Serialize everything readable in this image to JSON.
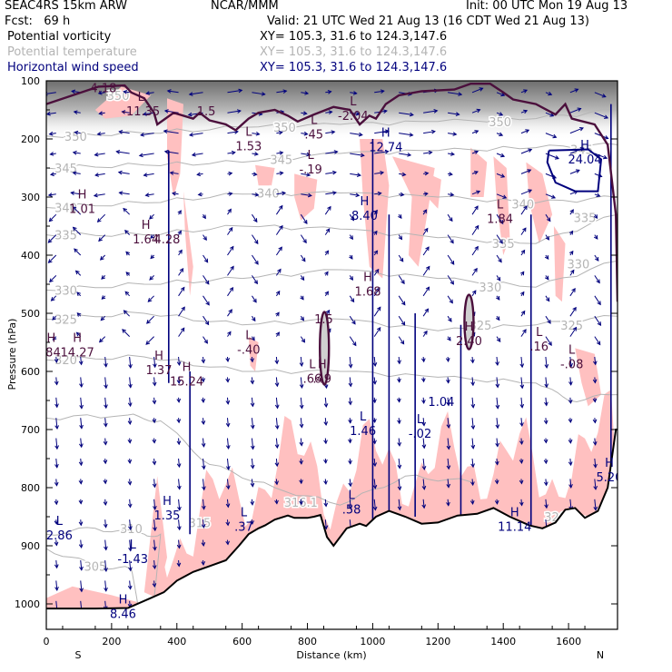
{
  "header": {
    "model": "SEAC4RS 15km ARW",
    "center": "NCAR/MMM",
    "init": "Init: 00 UTC Mon 19 Aug 13",
    "fcst": "Fcst:   69 h",
    "valid": "Valid: 21 UTC Wed 21 Aug 13 (16 CDT Wed 21 Aug 13)",
    "fields": [
      {
        "name": "Potential vorticity",
        "xy": "XY= 105.3, 31.6 to 124.3,147.6",
        "color": "#000000"
      },
      {
        "name": "Potential temperature",
        "xy": "XY= 105.3, 31.6 to 124.3,147.6",
        "color": "#b4b4b4"
      },
      {
        "name": "Horizontal wind speed",
        "xy": "XY= 105.3, 31.6 to 124.3,147.6",
        "color": "#00007d"
      }
    ]
  },
  "colors": {
    "pv_contour": "#4b0f3c",
    "theta_contour": "#b4b4b4",
    "wind": "#00007d",
    "pv_shade_low": "#ffc0c0",
    "terrain": "#000000"
  },
  "chart_data": {
    "type": "cross-section",
    "title": "Potential vorticity, Potential temperature, Horizontal wind speed",
    "xlabel": "Distance (km)",
    "ylabel": "Pressure (hPa)",
    "xlim": [
      0,
      1750
    ],
    "ylim": [
      1050,
      100
    ],
    "x_ticks": [
      0,
      200,
      400,
      600,
      800,
      1000,
      1200,
      1400,
      1600
    ],
    "x_tick_labels": [
      "0",
      "200",
      "400",
      "600",
      "800",
      "1000",
      "1200",
      "1400",
      "1600"
    ],
    "y_ticks": [
      100,
      200,
      300,
      400,
      500,
      600,
      700,
      800,
      900,
      1000
    ],
    "y_tick_labels": [
      "100",
      "200",
      "300",
      "400",
      "500",
      "600",
      "700",
      "800",
      "900",
      "1000"
    ],
    "endpoints": {
      "left": "S",
      "right": "N"
    },
    "theta_contours": [
      {
        "value": 305,
        "label": "305",
        "label_at": [
          150,
          935
        ]
      },
      {
        "value": 310,
        "label": "310",
        "label_at": [
          260,
          870
        ]
      },
      {
        "value": 315,
        "label": "315",
        "label_at": [
          470,
          860
        ]
      },
      {
        "value": 316.1,
        "label": "316.1",
        "label_at": [
          780,
          825
        ]
      },
      {
        "value": 320,
        "label": "320",
        "label_at": [
          60,
          580
        ]
      },
      {
        "value": 320,
        "label": "320",
        "label_at": [
          1560,
          850
        ]
      },
      {
        "value": 325,
        "label": "325",
        "label_at": [
          60,
          510
        ]
      },
      {
        "value": 325,
        "label": "325",
        "label_at": [
          1330,
          520
        ]
      },
      {
        "value": 325,
        "label": "325",
        "label_at": [
          1610,
          520
        ]
      },
      {
        "value": 330,
        "label": "330",
        "label_at": [
          60,
          460
        ]
      },
      {
        "value": 330,
        "label": "330",
        "label_at": [
          1360,
          455
        ]
      },
      {
        "value": 330,
        "label": "330",
        "label_at": [
          1630,
          415
        ]
      },
      {
        "value": 335,
        "label": "335",
        "label_at": [
          60,
          365
        ]
      },
      {
        "value": 335,
        "label": "335",
        "label_at": [
          1400,
          380
        ]
      },
      {
        "value": 335,
        "label": "335",
        "label_at": [
          1650,
          335
        ]
      },
      {
        "value": 340,
        "label": "340",
        "label_at": [
          60,
          318
        ]
      },
      {
        "value": 340,
        "label": "340",
        "label_at": [
          680,
          293
        ]
      },
      {
        "value": 340,
        "label": "340",
        "label_at": [
          1460,
          312
        ]
      },
      {
        "value": 345,
        "label": "345",
        "label_at": [
          60,
          250
        ]
      },
      {
        "value": 345,
        "label": "345",
        "label_at": [
          720,
          235
        ]
      },
      {
        "value": 345,
        "label": "345",
        "label_at": [
          1640,
          218
        ]
      },
      {
        "value": 350,
        "label": "350",
        "label_at": [
          90,
          195
        ]
      },
      {
        "value": 350,
        "label": "350",
        "label_at": [
          730,
          180
        ]
      },
      {
        "value": 350,
        "label": "350",
        "label_at": [
          1390,
          170
        ]
      },
      {
        "value": 350,
        "label": "350",
        "label_at": [
          220,
          125
        ]
      }
    ],
    "extrema_labels": [
      {
        "type": "L",
        "value": "4.18",
        "x": 175,
        "y": 110
      },
      {
        "type": "L",
        "value": "-11.35",
        "x": 290,
        "y": 150
      },
      {
        "type": "",
        "value": "1.5",
        "x": 490,
        "y": 150
      },
      {
        "type": "L",
        "value": "1.53",
        "x": 620,
        "y": 210
      },
      {
        "type": "L",
        "value": ".45",
        "x": 820,
        "y": 190
      },
      {
        "type": "L",
        "value": "-2.04",
        "x": 940,
        "y": 158
      },
      {
        "type": "H",
        "value": "12.74",
        "x": 1040,
        "y": 212
      },
      {
        "type": "L",
        "value": "-.19",
        "x": 810,
        "y": 250
      },
      {
        "type": "H",
        "value": "1.01",
        "x": 110,
        "y": 318
      },
      {
        "type": "H",
        "value": "8.40",
        "x": 975,
        "y": 330
      },
      {
        "type": "L",
        "value": "1.84",
        "x": 1390,
        "y": 335
      },
      {
        "type": "H",
        "value": "1.64",
        "x": 305,
        "y": 370
      },
      {
        "type": "",
        "value": "4.28",
        "x": 370,
        "y": 370
      },
      {
        "type": "H",
        "value": "24.04",
        "x": 1650,
        "y": 233
      },
      {
        "type": "H",
        "value": "1.68",
        "x": 985,
        "y": 460
      },
      {
        "type": "",
        "value": "1.5",
        "x": 850,
        "y": 508
      },
      {
        "type": "H",
        "value": "2.40",
        "x": 1295,
        "y": 545
      },
      {
        "type": "H",
        "value": ".84",
        "x": 15,
        "y": 565
      },
      {
        "type": "H",
        "value": "14.27",
        "x": 95,
        "y": 565
      },
      {
        "type": "L",
        "value": "-.40",
        "x": 620,
        "y": 560
      },
      {
        "type": "L",
        "value": ".16",
        "x": 1510,
        "y": 555
      },
      {
        "type": "L",
        "value": "-.08",
        "x": 1610,
        "y": 585
      },
      {
        "type": "H",
        "value": "1.37",
        "x": 345,
        "y": 595
      },
      {
        "type": "H",
        "value": "15.24",
        "x": 430,
        "y": 615
      },
      {
        "type": "L",
        "value": ".66",
        "x": 815,
        "y": 610
      },
      {
        "type": "H",
        "value": ".49",
        "x": 845,
        "y": 610
      },
      {
        "type": "",
        "value": "1.04",
        "x": 1210,
        "y": 650
      },
      {
        "type": "L",
        "value": "1.46",
        "x": 970,
        "y": 700
      },
      {
        "type": "L",
        "value": "-.02",
        "x": 1145,
        "y": 705
      },
      {
        "type": "H",
        "value": "5.20",
        "x": 1725,
        "y": 780
      },
      {
        "type": "L",
        "value": ".58",
        "x": 935,
        "y": 835
      },
      {
        "type": "H",
        "value": "1.35",
        "x": 370,
        "y": 845
      },
      {
        "type": "L",
        "value": ".37",
        "x": 605,
        "y": 865
      },
      {
        "type": "H",
        "value": "11.14",
        "x": 1435,
        "y": 865
      },
      {
        "type": "L",
        "value": "2.86",
        "x": 40,
        "y": 880
      },
      {
        "type": "L",
        "value": "-1.43",
        "x": 265,
        "y": 920
      },
      {
        "type": "H",
        "value": "8.46",
        "x": 235,
        "y": 1015
      }
    ],
    "terrain_surface_hpa": [
      [
        0,
        1008
      ],
      [
        150,
        1008
      ],
      [
        250,
        1007
      ],
      [
        320,
        990
      ],
      [
        360,
        980
      ],
      [
        400,
        960
      ],
      [
        450,
        945
      ],
      [
        500,
        935
      ],
      [
        550,
        925
      ],
      [
        590,
        900
      ],
      [
        620,
        880
      ],
      [
        650,
        870
      ],
      [
        670,
        865
      ],
      [
        700,
        855
      ],
      [
        740,
        848
      ],
      [
        760,
        852
      ],
      [
        800,
        852
      ],
      [
        820,
        850
      ],
      [
        840,
        847
      ],
      [
        860,
        885
      ],
      [
        880,
        900
      ],
      [
        920,
        870
      ],
      [
        960,
        862
      ],
      [
        980,
        866
      ],
      [
        1010,
        850
      ],
      [
        1050,
        840
      ],
      [
        1100,
        850
      ],
      [
        1150,
        862
      ],
      [
        1200,
        860
      ],
      [
        1260,
        848
      ],
      [
        1320,
        845
      ],
      [
        1370,
        835
      ],
      [
        1420,
        850
      ],
      [
        1480,
        865
      ],
      [
        1520,
        870
      ],
      [
        1560,
        860
      ],
      [
        1590,
        838
      ],
      [
        1620,
        835
      ],
      [
        1650,
        852
      ],
      [
        1690,
        840
      ],
      [
        1720,
        800
      ],
      [
        1745,
        700
      ],
      [
        1750,
        700
      ]
    ],
    "dynamic_tropopause_pv": 1.5
  }
}
